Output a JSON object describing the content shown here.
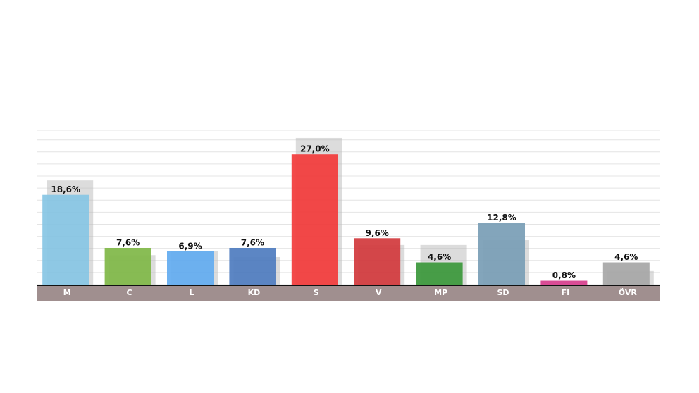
{
  "chart_data": {
    "type": "bar",
    "categories": [
      "M",
      "C",
      "L",
      "KD",
      "S",
      "V",
      "MP",
      "SD",
      "FI",
      "ÖVR"
    ],
    "series": [
      {
        "colors": [
          "#b9b9b9",
          "#b9b9b9",
          "#b9b9b9",
          "#b9b9b9",
          "#b9b9b9",
          "#b9b9b9",
          "#b9b9b9",
          "#b9b9b9",
          "#b9b9b9",
          "#b9b9b9"
        ],
        "values": [
          21.6,
          6.1,
          6.9,
          5.7,
          30.4,
          8.2,
          8.2,
          9.2,
          0,
          2.8
        ]
      },
      {
        "colors": [
          "#87c6e4",
          "#7fb747",
          "#62abf0",
          "#4e7cbf",
          "#f23a3a",
          "#d1383c",
          "#3a973a",
          "#789db5",
          "#d63d8c",
          "#a6a6a6"
        ],
        "values": [
          18.6,
          7.6,
          6.9,
          7.6,
          27.0,
          9.6,
          4.6,
          12.8,
          0.8,
          4.6
        ],
        "value_labels": [
          "18,6%",
          "7,6%",
          "6,9%",
          "7,6%",
          "27,0%",
          "9,6%",
          "4,6%",
          "12,8%",
          "0,8%",
          "4,6%"
        ]
      }
    ],
    "ylim": [
      0,
      32
    ],
    "yticks": [
      0,
      2.5,
      5,
      7.5,
      10,
      12.5,
      15,
      17.5,
      20,
      22.5,
      25,
      27.5,
      30,
      32
    ],
    "grid": true
  }
}
